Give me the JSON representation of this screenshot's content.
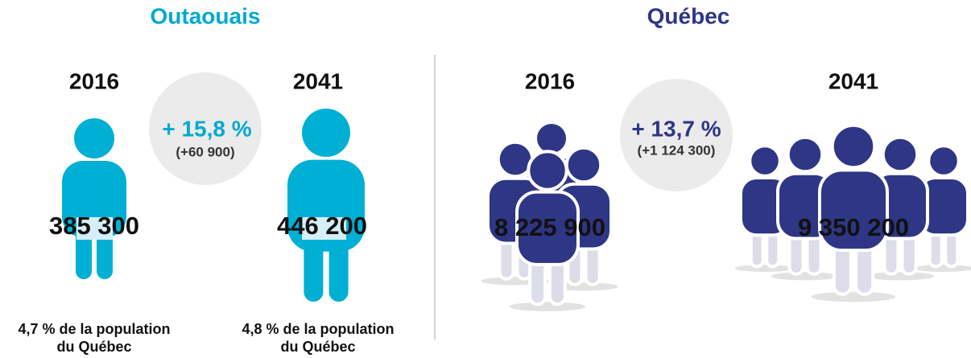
{
  "panels": [
    {
      "title": "Outaouais",
      "growth": {
        "percent": "+ 15,8 %",
        "absolute": "(+60 900)"
      },
      "years": [
        {
          "year": "2016",
          "population": "385 300",
          "share": [
            "4,7 % de la population",
            "du Québec"
          ]
        },
        {
          "year": "2041",
          "population": "446 200",
          "share": [
            "4,8 % de la population",
            "du Québec"
          ]
        }
      ]
    },
    {
      "title": "Québec",
      "growth": {
        "percent": "+ 13,7 %",
        "absolute": "(+1 124 300)"
      },
      "years": [
        {
          "year": "2016",
          "population": "8 225 900"
        },
        {
          "year": "2041",
          "population": "9 350 200"
        }
      ]
    }
  ]
}
